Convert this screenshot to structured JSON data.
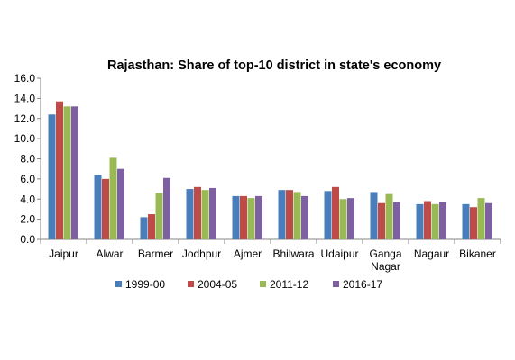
{
  "chart_data": {
    "type": "bar",
    "title": "Rajasthan: Share of top-10 district in state's economy",
    "xlabel": "",
    "ylabel": "",
    "ylim": [
      0,
      16
    ],
    "yticks": [
      "0.0",
      "2.0",
      "4.0",
      "6.0",
      "8.0",
      "10.0",
      "12.0",
      "14.0",
      "16.0"
    ],
    "grid": false,
    "legend_position": "bottom",
    "categories": [
      "Jaipur",
      "Alwar",
      "Barmer",
      "Jodhpur",
      "Ajmer",
      "Bhilwara",
      "Udaipur",
      "Ganga Nagar",
      "Nagaur",
      "Bikaner"
    ],
    "series": [
      {
        "name": "1999-00",
        "color": "#4a7ebb",
        "values": [
          12.4,
          6.4,
          2.2,
          5.0,
          4.3,
          4.9,
          4.8,
          4.7,
          3.5,
          3.5
        ]
      },
      {
        "name": "2004-05",
        "color": "#be4b48",
        "values": [
          13.7,
          6.0,
          2.5,
          5.2,
          4.3,
          4.9,
          5.2,
          3.6,
          3.8,
          3.2
        ]
      },
      {
        "name": "2011-12",
        "color": "#98b954",
        "values": [
          13.2,
          8.1,
          4.6,
          4.9,
          4.1,
          4.7,
          4.0,
          4.5,
          3.5,
          4.1
        ]
      },
      {
        "name": "2016-17",
        "color": "#7d60a0",
        "values": [
          13.2,
          7.0,
          6.1,
          5.1,
          4.3,
          4.3,
          4.1,
          3.7,
          3.7,
          3.6
        ]
      }
    ]
  }
}
